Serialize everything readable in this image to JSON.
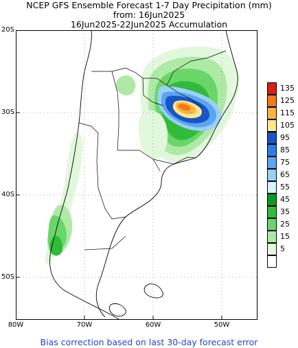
{
  "title": {
    "line1": "NCEP GFS Ensemble Forecast 1-7 Day Precipitation (mm)",
    "line2": "from: 16Jun2025",
    "line3": "16Jun2025-22Jun2025 Accumulation"
  },
  "lat_labels": [
    "20S",
    "30S",
    "40S",
    "50S"
  ],
  "lon_labels": [
    "80W",
    "70W",
    "60W",
    "50W"
  ],
  "legend": {
    "levels": [
      {
        "label": "135",
        "color": "#d62018"
      },
      {
        "label": "125",
        "color": "#f5781c"
      },
      {
        "label": "115",
        "color": "#fbb43c"
      },
      {
        "label": "105",
        "color": "#fbe88c"
      },
      {
        "label": "95",
        "color": "#1854c8"
      },
      {
        "label": "85",
        "color": "#2c7ee6"
      },
      {
        "label": "75",
        "color": "#5aa6f2"
      },
      {
        "label": "65",
        "color": "#9cd0f8"
      },
      {
        "label": "55",
        "color": "#d8f2fc"
      },
      {
        "label": "45",
        "color": "#0e9a26"
      },
      {
        "label": "35",
        "color": "#30bc3a"
      },
      {
        "label": "25",
        "color": "#6ad66a"
      },
      {
        "label": "15",
        "color": "#aeeaa6"
      },
      {
        "label": "5",
        "color": "#e2f8dc"
      },
      {
        "label": "",
        "color": "#ffffff"
      }
    ]
  },
  "footer": "Bias correction based on last 30-day forecast error"
}
